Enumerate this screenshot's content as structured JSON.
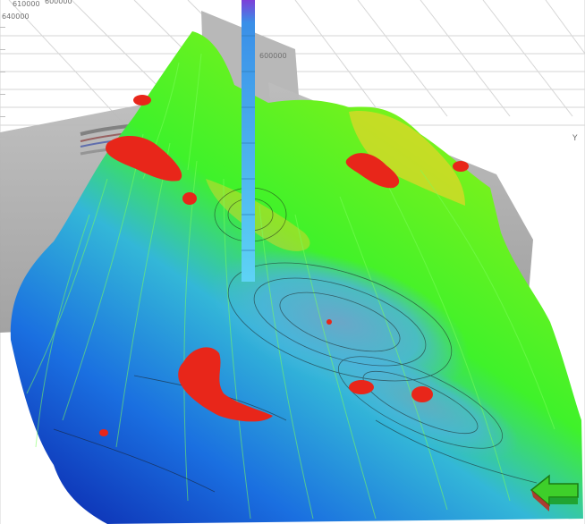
{
  "viewer": {
    "axes": {
      "tick_y_640000": "640000",
      "tick_y_610000": "610000",
      "tick_top_1": "600000",
      "tick_x_600000": "600000",
      "axis_y_label": "Y"
    },
    "nav_arrow_icon": "3d-orientation-arrow-icon"
  },
  "colors": {
    "surface_high": "#f4e01e",
    "surface_mid": "#3ff22a",
    "surface_low": "#1a6fe0",
    "surface_deep": "#0a1fa8",
    "anomaly": "#e8261a",
    "seismic_panel": "#a9a9a9",
    "well": "#4fb6ef"
  }
}
